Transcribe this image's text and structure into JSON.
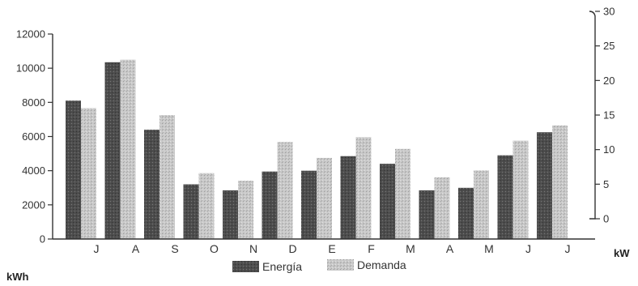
{
  "chart_data": {
    "type": "bar",
    "categories": [
      "J",
      "A",
      "S",
      "O",
      "N",
      "D",
      "E",
      "F",
      "M",
      "A",
      "M",
      "J",
      "J"
    ],
    "series": [
      {
        "name": "Energía",
        "axis": "left",
        "color": "#4a4a4a",
        "values": [
          8100,
          10350,
          6400,
          3200,
          2850,
          3950,
          4000,
          4850,
          4400,
          2850,
          3000,
          4900,
          6250
        ]
      },
      {
        "name": "Demanda",
        "axis": "right",
        "color": "#bdbdbd",
        "values": [
          16,
          23,
          15,
          6.6,
          5.5,
          11.1,
          8.8,
          11.8,
          10.1,
          6,
          7,
          11.3,
          13.5
        ]
      }
    ],
    "ylabel": "kWh",
    "ylim": [
      0,
      12000
    ],
    "yticks": [
      0,
      2000,
      4000,
      6000,
      8000,
      10000,
      12000
    ],
    "y2label": "kW",
    "y2lim": [
      0,
      30
    ],
    "y2ticks": [
      0,
      5,
      10,
      15,
      20,
      25,
      30
    ],
    "legend": "bottom-center",
    "grid": false
  }
}
